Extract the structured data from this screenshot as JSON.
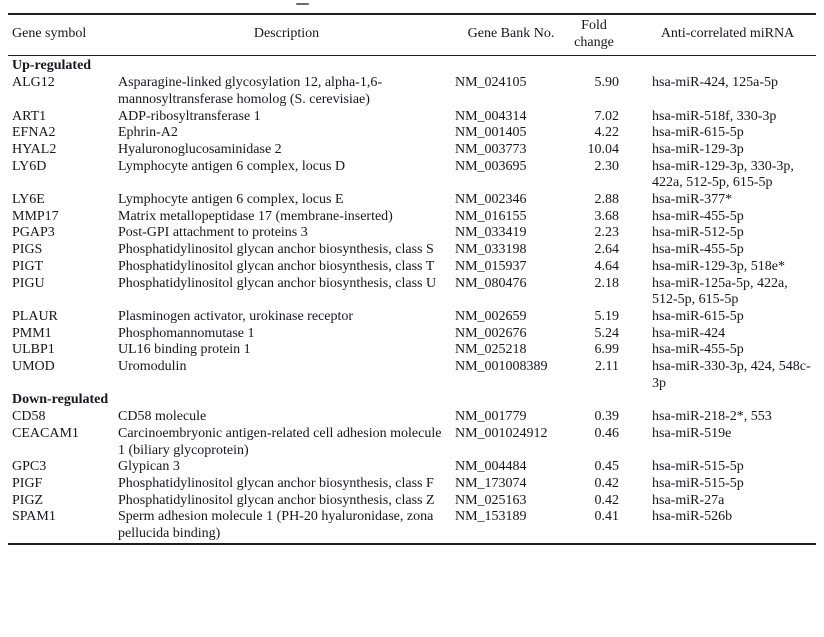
{
  "table": {
    "columns": [
      "Gene symbol",
      "Description",
      "Gene Bank No.",
      "Fold change",
      "Anti-correlated miRNA"
    ],
    "sections": [
      {
        "label": "Up-regulated",
        "rows": [
          {
            "gene": "ALG12",
            "description": "Asparagine-linked glycosylation 12, alpha-1,6-mannosyltransferase homolog (S. cerevisiae)",
            "genbank": "NM_024105",
            "fold": "5.90",
            "mirna": "hsa-miR-424, 125a-5p"
          },
          {
            "gene": "ART1",
            "description": "ADP-ribosyltransferase 1",
            "genbank": "NM_004314",
            "fold": "7.02",
            "mirna": "hsa-miR-518f, 330-3p"
          },
          {
            "gene": "EFNA2",
            "description": "Ephrin-A2",
            "genbank": "NM_001405",
            "fold": "4.22",
            "mirna": "hsa-miR-615-5p"
          },
          {
            "gene": "HYAL2",
            "description": "Hyaluronoglucosaminidase 2",
            "genbank": "NM_003773",
            "fold": "10.04",
            "mirna": "hsa-miR-129-3p"
          },
          {
            "gene": "LY6D",
            "description": "Lymphocyte antigen 6 complex, locus D",
            "genbank": "NM_003695",
            "fold": "2.30",
            "mirna": "hsa-miR-129-3p, 330-3p, 422a, 512-5p, 615-5p"
          },
          {
            "gene": "LY6E",
            "description": "Lymphocyte antigen 6 complex, locus E",
            "genbank": "NM_002346",
            "fold": "2.88",
            "mirna": "hsa-miR-377*"
          },
          {
            "gene": "MMP17",
            "description": "Matrix metallopeptidase 17 (membrane-inserted)",
            "genbank": "NM_016155",
            "fold": "3.68",
            "mirna": "hsa-miR-455-5p"
          },
          {
            "gene": "PGAP3",
            "description": "Post-GPI attachment to proteins 3",
            "genbank": "NM_033419",
            "fold": "2.23",
            "mirna": "hsa-miR-512-5p"
          },
          {
            "gene": "PIGS",
            "description": "Phosphatidylinositol glycan anchor biosynthesis, class S",
            "genbank": "NM_033198",
            "fold": "2.64",
            "mirna": "hsa-miR-455-5p"
          },
          {
            "gene": "PIGT",
            "description": "Phosphatidylinositol glycan anchor biosynthesis, class T",
            "genbank": "NM_015937",
            "fold": "4.64",
            "mirna": "hsa-miR-129-3p, 518e*"
          },
          {
            "gene": "PIGU",
            "description": "Phosphatidylinositol glycan anchor biosynthesis, class U",
            "genbank": "NM_080476",
            "fold": "2.18",
            "mirna": "hsa-miR-125a-5p, 422a, 512-5p, 615-5p"
          },
          {
            "gene": "PLAUR",
            "description": "Plasminogen activator, urokinase receptor",
            "genbank": "NM_002659",
            "fold": "5.19",
            "mirna": "hsa-miR-615-5p"
          },
          {
            "gene": "PMM1",
            "description": "Phosphomannomutase 1",
            "genbank": "NM_002676",
            "fold": "5.24",
            "mirna": "hsa-miR-424"
          },
          {
            "gene": "ULBP1",
            "description": "UL16 binding protein 1",
            "genbank": "NM_025218",
            "fold": "6.99",
            "mirna": "hsa-miR-455-5p"
          },
          {
            "gene": "UMOD",
            "description": "Uromodulin",
            "genbank": "NM_001008389",
            "fold": "2.11",
            "mirna": "hsa-miR-330-3p, 424, 548c-3p"
          }
        ]
      },
      {
        "label": "Down-regulated",
        "rows": [
          {
            "gene": "CD58",
            "description": "CD58 molecule",
            "genbank": "NM_001779",
            "fold": "0.39",
            "mirna": "hsa-miR-218-2*, 553"
          },
          {
            "gene": "CEACAM1",
            "description": "Carcinoembryonic antigen-related cell adhesion molecule 1 (biliary glycoprotein)",
            "genbank": "NM_001024912",
            "fold": "0.46",
            "mirna": "hsa-miR-519e"
          },
          {
            "gene": "GPC3",
            "description": "Glypican 3",
            "genbank": "NM_004484",
            "fold": "0.45",
            "mirna": "hsa-miR-515-5p"
          },
          {
            "gene": "PIGF",
            "description": "Phosphatidylinositol glycan anchor biosynthesis, class F",
            "genbank": "NM_173074",
            "fold": "0.42",
            "mirna": "hsa-miR-515-5p"
          },
          {
            "gene": "PIGZ",
            "description": "Phosphatidylinositol glycan anchor biosynthesis, class Z",
            "genbank": "NM_025163",
            "fold": "0.42",
            "mirna": "hsa-miR-27a"
          },
          {
            "gene": "SPAM1",
            "description": "Sperm adhesion molecule 1 (PH-20 hyaluronidase, zona pellucida binding)",
            "genbank": "NM_153189",
            "fold": "0.41",
            "mirna": "hsa-miR-526b"
          }
        ]
      }
    ]
  }
}
